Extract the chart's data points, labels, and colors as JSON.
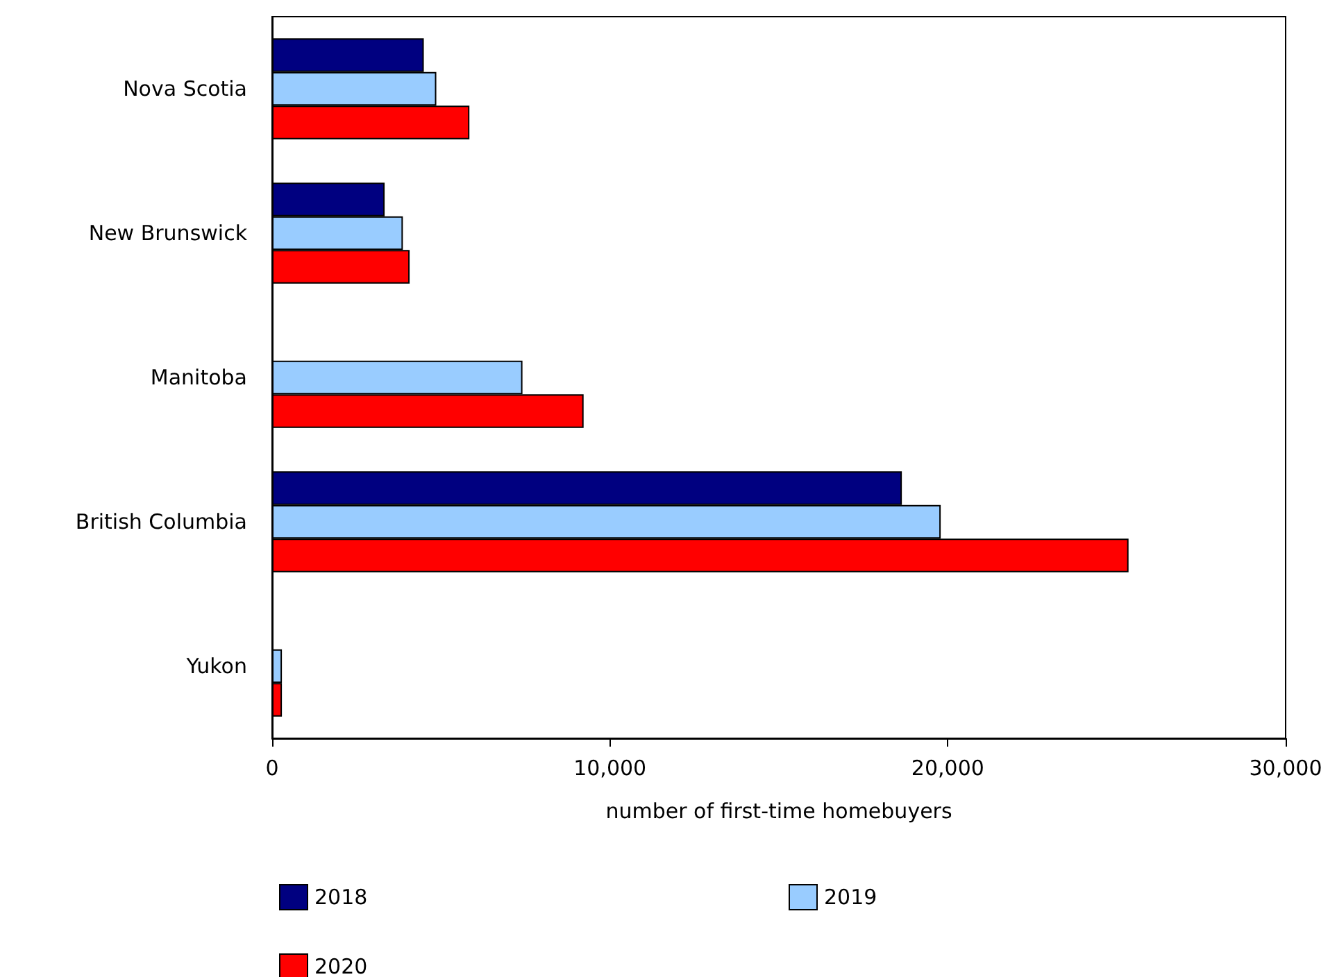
{
  "chart_data": {
    "type": "bar",
    "orientation": "horizontal",
    "xlabel": "number of first-time homebuyers",
    "categories": [
      "Nova Scotia",
      "New Brunswick",
      "Manitoba",
      "British Columbia",
      "Yukon"
    ],
    "series": [
      {
        "name": "2018",
        "color": "#000080",
        "values": [
          4490,
          3330,
          null,
          18640,
          null
        ]
      },
      {
        "name": "2019",
        "color": "#99ccff",
        "values": [
          4860,
          3870,
          7410,
          19790,
          290
        ]
      },
      {
        "name": "2020",
        "color": "#ff0000",
        "values": [
          5840,
          4070,
          9220,
          25350,
          290
        ]
      }
    ],
    "xlim": [
      0,
      30000
    ],
    "xticks": [
      0,
      {
        "value": 10000,
        "label": "10,000"
      },
      {
        "value": 20000,
        "label": "20,000"
      },
      {
        "value": 30000,
        "label": "30,000"
      }
    ],
    "grid": false,
    "legend": "bottom"
  }
}
